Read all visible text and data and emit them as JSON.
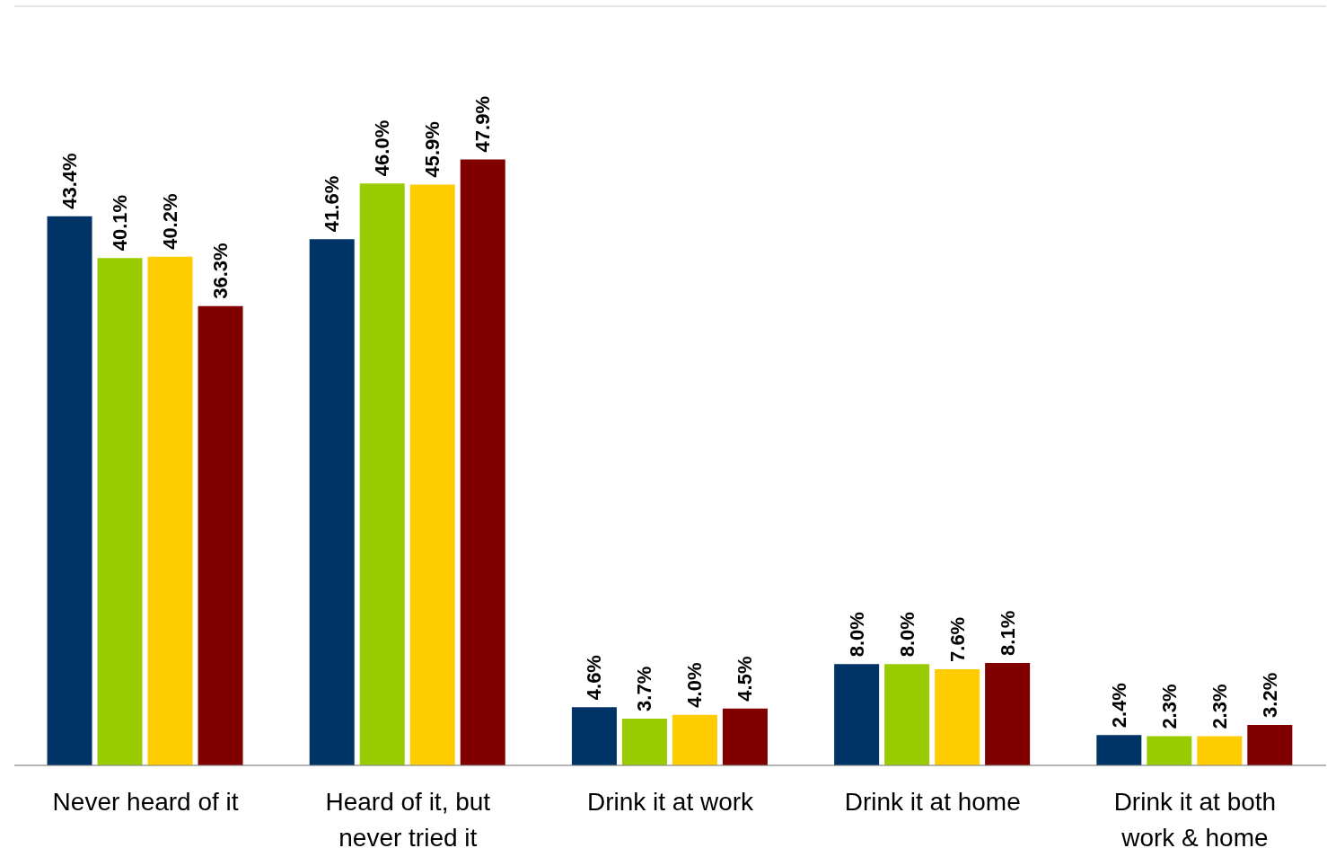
{
  "chart_data": {
    "type": "bar",
    "categories": [
      "Never heard of it",
      "Heard of it, but never tried it",
      "Drink it at work",
      "Drink it at home",
      "Drink it at both work & home"
    ],
    "series": [
      {
        "color": "#003366",
        "values": [
          43.4,
          41.6,
          4.6,
          8.0,
          2.4
        ],
        "value_labels": [
          "43.4%",
          "41.6%",
          "4.6%",
          "8.0%",
          "2.4%"
        ]
      },
      {
        "color": "#99cc00",
        "values": [
          40.1,
          46.0,
          3.7,
          8.0,
          2.3
        ],
        "value_labels": [
          "40.1%",
          "46.0%",
          "3.7%",
          "8.0%",
          "2.3%"
        ]
      },
      {
        "color": "#ffcc00",
        "values": [
          40.2,
          45.9,
          4.0,
          7.6,
          2.3
        ],
        "value_labels": [
          "40.2%",
          "45.9%",
          "4.0%",
          "7.6%",
          "2.3%"
        ]
      },
      {
        "color": "#800000",
        "values": [
          36.3,
          47.9,
          4.5,
          8.1,
          3.2
        ],
        "value_labels": [
          "36.3%",
          "47.9%",
          "4.5%",
          "8.1%",
          "3.2%"
        ]
      }
    ],
    "ylim": [
      0,
      60
    ],
    "grid": "y",
    "tick_labels": "x",
    "legend": false
  }
}
